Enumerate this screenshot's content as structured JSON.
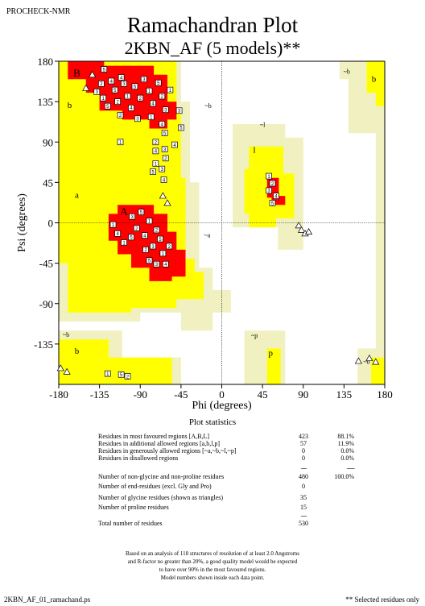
{
  "header": {
    "program": "PROCHECK-NMR",
    "title": "Ramachandran Plot",
    "subtitle": "2KBN_AF (5 models)**"
  },
  "chart_data": {
    "type": "scatter",
    "xlabel": "Phi (degrees)",
    "ylabel": "Psi (degrees)",
    "xlim": [
      -180,
      180
    ],
    "ylim": [
      -180,
      180
    ],
    "xticks": [
      -180,
      -135,
      -90,
      -45,
      0,
      45,
      90,
      135,
      180
    ],
    "yticks": [
      -135,
      -90,
      -45,
      0,
      45,
      90,
      135,
      180
    ],
    "region_labels": [
      {
        "text": "B",
        "phi": -160,
        "psi": 163
      },
      {
        "text": "b",
        "phi": -168,
        "psi": 128
      },
      {
        "text": "~b",
        "phi": -15,
        "psi": 128
      },
      {
        "text": "a",
        "phi": -160,
        "psi": 28
      },
      {
        "text": "A",
        "phi": -108,
        "psi": 9
      },
      {
        "text": "~a",
        "phi": -16,
        "psi": -16
      },
      {
        "text": "~l",
        "phi": 45,
        "psi": 107
      },
      {
        "text": "l",
        "phi": 36,
        "psi": 78
      },
      {
        "text": "~b",
        "phi": -172,
        "psi": -127
      },
      {
        "text": "b",
        "phi": -160,
        "psi": -146
      },
      {
        "text": "~p",
        "phi": 36,
        "psi": -128
      },
      {
        "text": "p",
        "phi": 54,
        "psi": -148
      },
      {
        "text": "~b",
        "phi": 138,
        "psi": 166
      },
      {
        "text": "b",
        "phi": 168,
        "psi": 157
      },
      {
        "text": "~b",
        "phi": 160,
        "psi": -157
      }
    ],
    "residues": [
      {
        "phi": -130,
        "psi": 171,
        "label": "5"
      },
      {
        "phi": -133,
        "psi": 155,
        "label": "2"
      },
      {
        "phi": -138,
        "psi": 146,
        "label": "3"
      },
      {
        "phi": -131,
        "psi": 139,
        "label": "1"
      },
      {
        "phi": -122,
        "psi": 158,
        "label": "4"
      },
      {
        "phi": -118,
        "psi": 148,
        "label": "5"
      },
      {
        "phi": -115,
        "psi": 135,
        "label": "2"
      },
      {
        "phi": -108,
        "psi": 155,
        "label": "3"
      },
      {
        "phi": -104,
        "psi": 141,
        "label": "1"
      },
      {
        "phi": -100,
        "psi": 128,
        "label": "4"
      },
      {
        "phi": -96,
        "psi": 152,
        "label": "5"
      },
      {
        "phi": -90,
        "psi": 139,
        "label": "2"
      },
      {
        "phi": -86,
        "psi": 160,
        "label": "3"
      },
      {
        "phi": -80,
        "psi": 147,
        "label": "1"
      },
      {
        "phi": -76,
        "psi": 133,
        "label": "4"
      },
      {
        "phi": -70,
        "psi": 156,
        "label": "5"
      },
      {
        "phi": -66,
        "psi": 141,
        "label": "2"
      },
      {
        "phi": -62,
        "psi": 126,
        "label": "3"
      },
      {
        "phi": -57,
        "psi": 148,
        "label": "1"
      },
      {
        "phi": -111,
        "psi": 162,
        "label": "4"
      },
      {
        "phi": -126,
        "psi": 130,
        "label": "5"
      },
      {
        "phi": -112,
        "psi": 120,
        "label": "2"
      },
      {
        "phi": -93,
        "psi": 116,
        "label": "3"
      },
      {
        "phi": -78,
        "psi": 118,
        "label": "1"
      },
      {
        "phi": -66,
        "psi": 110,
        "label": "4"
      },
      {
        "phi": -63,
        "psi": 100,
        "label": "5"
      },
      {
        "phi": -47,
        "psi": 125,
        "label": "3"
      },
      {
        "phi": -45,
        "psi": 106,
        "label": "5"
      },
      {
        "phi": -112,
        "psi": 90,
        "label": "1"
      },
      {
        "phi": -73,
        "psi": 90,
        "label": "2"
      },
      {
        "phi": -63,
        "psi": 82,
        "label": "3"
      },
      {
        "phi": -73,
        "psi": 80,
        "label": "4"
      },
      {
        "phi": -62,
        "psi": 72,
        "label": "2"
      },
      {
        "phi": -73,
        "psi": 66,
        "label": "1"
      },
      {
        "phi": -66,
        "psi": 60,
        "label": "3"
      },
      {
        "phi": -76,
        "psi": 57,
        "label": "5"
      },
      {
        "phi": -64,
        "psi": 48,
        "label": "4"
      },
      {
        "phi": -52,
        "psi": 87,
        "label": "4"
      },
      {
        "phi": -120,
        "psi": -2,
        "label": "1"
      },
      {
        "phi": -115,
        "psi": -12,
        "label": "4"
      },
      {
        "phi": -108,
        "psi": -22,
        "label": "1"
      },
      {
        "phi": -99,
        "psi": 7,
        "label": "3"
      },
      {
        "phi": -94,
        "psi": -6,
        "label": "2"
      },
      {
        "phi": -89,
        "psi": 12,
        "label": "5"
      },
      {
        "phi": -85,
        "psi": -14,
        "label": "4"
      },
      {
        "phi": -80,
        "psi": 2,
        "label": "1"
      },
      {
        "phi": -76,
        "psi": -26,
        "label": "3"
      },
      {
        "phi": -72,
        "psi": -8,
        "label": "2"
      },
      {
        "phi": -68,
        "psi": -18,
        "label": "5"
      },
      {
        "phi": -65,
        "psi": -34,
        "label": "1"
      },
      {
        "phi": -62,
        "psi": -46,
        "label": "4"
      },
      {
        "phi": -72,
        "psi": -46,
        "label": "3"
      },
      {
        "phi": -80,
        "psi": -42,
        "label": "5"
      },
      {
        "phi": -58,
        "psi": -26,
        "label": "2"
      },
      {
        "phi": -84,
        "psi": -30,
        "label": "2"
      },
      {
        "phi": -100,
        "psi": -16,
        "label": "5"
      },
      {
        "phi": 52,
        "psi": 52,
        "label": "1"
      },
      {
        "phi": 56,
        "psi": 44,
        "label": "2"
      },
      {
        "phi": 52,
        "psi": 36,
        "label": "3"
      },
      {
        "phi": 60,
        "psi": 30,
        "label": "4"
      },
      {
        "phi": 56,
        "psi": 22,
        "label": "5"
      },
      {
        "phi": -126,
        "psi": -168,
        "label": "1"
      },
      {
        "phi": -111,
        "psi": -169,
        "label": "5"
      },
      {
        "phi": -104,
        "psi": -171,
        "label": "2"
      }
    ],
    "glycines": [
      {
        "phi": -150,
        "psi": 150
      },
      {
        "phi": -143,
        "psi": 165
      },
      {
        "phi": -65,
        "psi": 30
      },
      {
        "phi": -60,
        "psi": 22
      },
      {
        "phi": 85,
        "psi": -3
      },
      {
        "phi": 88,
        "psi": -8
      },
      {
        "phi": 92,
        "psi": -12
      },
      {
        "phi": 96,
        "psi": -10
      },
      {
        "phi": -178,
        "psi": -162
      },
      {
        "phi": -171,
        "psi": -166
      },
      {
        "phi": 151,
        "psi": -154
      },
      {
        "phi": 163,
        "psi": -151
      },
      {
        "phi": 170,
        "psi": -155
      }
    ]
  },
  "stats": {
    "title": "Plot statistics",
    "rows": [
      {
        "label": "Residues in most favoured regions  [A,B,L]",
        "count": "423",
        "pct": "88.1%"
      },
      {
        "label": "Residues in additional allowed regions  [a,b,l,p]",
        "count": "57",
        "pct": "11.9%"
      },
      {
        "label": "Residues in generously allowed regions  [~a,~b,~l,~p]",
        "count": "0",
        "pct": "0.0%"
      },
      {
        "label": "Residues in disallowed regions",
        "count": "0",
        "pct": "0.0%"
      },
      {
        "label": "Number of non-glycine and non-proline residues",
        "count": "480",
        "pct": "100.0%"
      },
      {
        "label": "Number of end-residues (excl. Gly and Pro)",
        "count": "0",
        "pct": ""
      },
      {
        "label": "Number of glycine residues (shown as triangles)",
        "count": "35",
        "pct": ""
      },
      {
        "label": "Number of proline residues",
        "count": "15",
        "pct": ""
      },
      {
        "label": "Total number of residues",
        "count": "530",
        "pct": ""
      }
    ],
    "dashes_count": "-----",
    "dashes_pct": "-------"
  },
  "note": [
    "Based on an analysis of 118 structures of resolution of at least 2.0 Angstroms",
    "and R-factor no greater than 20%, a good quality model would be expected",
    "to have over 90% in the most favoured regions.",
    "Model numbers shown inside each data point."
  ],
  "footer": {
    "left": "2KBN_AF_01_ramachand.ps",
    "right": "** Selected residues only"
  },
  "colors": {
    "most_favoured": "#ff0000",
    "additional": "#ffff00",
    "generous": "#ffffa8",
    "pale": "#f0f0c0",
    "disallowed": "#ffffff"
  }
}
